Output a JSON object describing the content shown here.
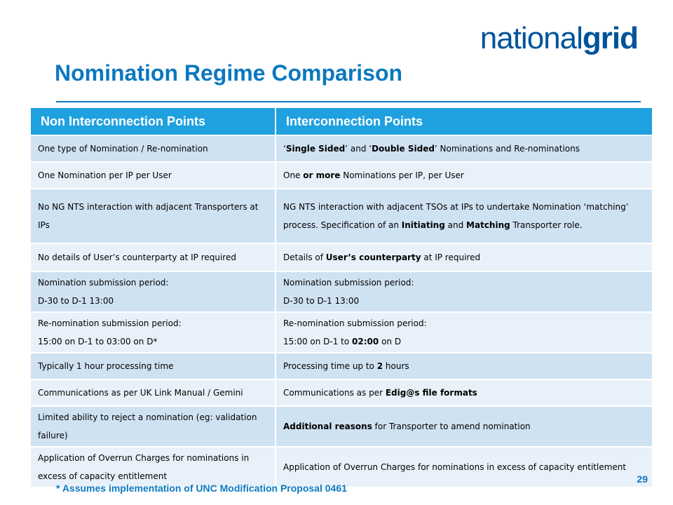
{
  "brand": {
    "logo_regular": "national",
    "logo_bold": "grid"
  },
  "title": "Nomination Regime Comparison",
  "table": {
    "headers": [
      "Non Interconnection Points",
      "Interconnection Points"
    ],
    "rows": [
      {
        "left": "One type of Nomination / Re-nomination",
        "right": "<span>‘</span><b>Single Sided</b><span>’ and ‘</span><b>Double Sided</b><span>’ Nominations and Re-nominations</span>"
      },
      {
        "left": "One Nomination per IP per User",
        "right": "<span>One </span><b>or more</b><span> Nominations per IP, per User</span>"
      },
      {
        "left": "No NG NTS interaction with adjacent Transporters at IPs",
        "right": "<span>NG NTS interaction with adjacent TSOs at IPs to undertake Nomination ‘matching’ process.  Specification of an </span><b>Initiating</b><span> and </span><b>Matching</b><span> Transporter role.</span>"
      },
      {
        "left": "No details of User’s counterparty at IP required",
        "right": "<span>Details of </span><b>User’s counterparty</b><span> at IP required</span>"
      },
      {
        "left": "Nomination submission period:<br>D-30 to D-1 13:00",
        "right": "<span>Nomination submission period:</span><br><span>D-30 to D-1 13:00</span>"
      },
      {
        "left": "Re-nomination submission period:<br>15:00 on D-1 to 03:00 on D*",
        "right": "<span>Re-nomination submission period:</span><br><span>15:00 on D-1 to </span><b>02:00</b><span> on D</span>"
      },
      {
        "left": "Typically 1 hour processing time",
        "right": "<span>Processing time up to </span><b>2</b><span> hours</span>"
      },
      {
        "left": "Communications as per UK Link Manual / Gemini",
        "right": "<span>Communications as per </span><b>Edig@s file formats</b>"
      },
      {
        "left": "Limited ability to reject a nomination (eg: validation failure)",
        "right": "<b>Additional reasons</b><span> for Transporter to amend nomination</span>"
      },
      {
        "left": "Application of Overrun Charges for nominations in excess of capacity entitlement",
        "right": "<span>Application of Overrun Charges for nominations in excess of capacity entitlement</span>"
      }
    ]
  },
  "footnote": "* Assumes implementation of UNC Modification Proposal 0461",
  "page_number": "29",
  "colors": {
    "title": "#0b78c0",
    "header_bg": "#1fa1e0",
    "row_dark": "#cfe2f2",
    "row_light": "#e8f1f9",
    "logo": "#00539b"
  }
}
